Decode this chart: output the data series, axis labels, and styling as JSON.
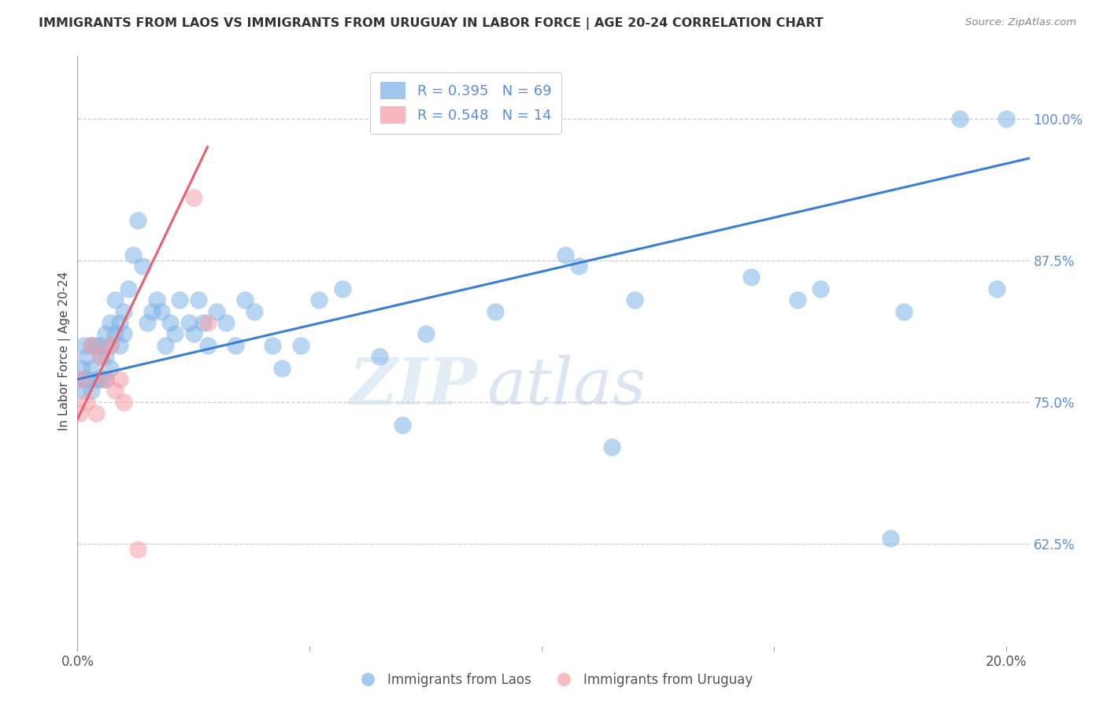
{
  "title": "IMMIGRANTS FROM LAOS VS IMMIGRANTS FROM URUGUAY IN LABOR FORCE | AGE 20-24 CORRELATION CHART",
  "source": "Source: ZipAtlas.com",
  "ylabel": "In Labor Force | Age 20-24",
  "legend_label_blue": "Immigrants from Laos",
  "legend_label_pink": "Immigrants from Uruguay",
  "r_blue": "0.395",
  "n_blue": "69",
  "r_pink": "0.548",
  "n_pink": "14",
  "y_ticks": [
    0.625,
    0.75,
    0.875,
    1.0
  ],
  "y_tick_labels": [
    "62.5%",
    "75.0%",
    "87.5%",
    "100.0%"
  ],
  "xlim": [
    0.0,
    0.205
  ],
  "ylim": [
    0.535,
    1.055
  ],
  "watermark_zip": "ZIP",
  "watermark_atlas": "atlas",
  "color_blue": "#7FB3E8",
  "color_pink": "#F4A0A8",
  "color_line_blue": "#3A7FD4",
  "color_line_pink": "#E8606C",
  "background": "#FFFFFF",
  "blue_x": [
    0.0005,
    0.001,
    0.001,
    0.0015,
    0.002,
    0.002,
    0.003,
    0.003,
    0.003,
    0.004,
    0.004,
    0.005,
    0.005,
    0.005,
    0.006,
    0.006,
    0.006,
    0.007,
    0.007,
    0.007,
    0.008,
    0.008,
    0.009,
    0.009,
    0.01,
    0.01,
    0.011,
    0.012,
    0.013,
    0.014,
    0.015,
    0.016,
    0.017,
    0.018,
    0.019,
    0.02,
    0.021,
    0.022,
    0.024,
    0.025,
    0.026,
    0.027,
    0.028,
    0.03,
    0.032,
    0.034,
    0.036,
    0.038,
    0.042,
    0.044,
    0.048,
    0.052,
    0.057,
    0.065,
    0.07,
    0.075,
    0.09,
    0.105,
    0.108,
    0.115,
    0.12,
    0.145,
    0.155,
    0.16,
    0.175,
    0.178,
    0.19,
    0.198,
    0.2
  ],
  "blue_y": [
    0.77,
    0.78,
    0.76,
    0.8,
    0.79,
    0.77,
    0.8,
    0.78,
    0.76,
    0.8,
    0.77,
    0.8,
    0.79,
    0.77,
    0.81,
    0.79,
    0.77,
    0.82,
    0.8,
    0.78,
    0.84,
    0.81,
    0.82,
    0.8,
    0.83,
    0.81,
    0.85,
    0.88,
    0.91,
    0.87,
    0.82,
    0.83,
    0.84,
    0.83,
    0.8,
    0.82,
    0.81,
    0.84,
    0.82,
    0.81,
    0.84,
    0.82,
    0.8,
    0.83,
    0.82,
    0.8,
    0.84,
    0.83,
    0.8,
    0.78,
    0.8,
    0.84,
    0.85,
    0.79,
    0.73,
    0.81,
    0.83,
    0.88,
    0.87,
    0.71,
    0.84,
    0.86,
    0.84,
    0.85,
    0.63,
    0.83,
    1.0,
    0.85,
    1.0
  ],
  "pink_x": [
    0.0005,
    0.001,
    0.002,
    0.003,
    0.004,
    0.005,
    0.006,
    0.007,
    0.008,
    0.009,
    0.01,
    0.013,
    0.025,
    0.028
  ],
  "pink_y": [
    0.74,
    0.77,
    0.75,
    0.8,
    0.74,
    0.79,
    0.77,
    0.8,
    0.76,
    0.77,
    0.75,
    0.62,
    0.93,
    0.82
  ],
  "blue_line_x0": 0.0,
  "blue_line_x1": 0.205,
  "blue_line_y0": 0.77,
  "blue_line_y1": 0.965,
  "pink_line_x0": 0.0,
  "pink_line_x1": 0.028,
  "pink_line_y0": 0.735,
  "pink_line_y1": 0.975
}
